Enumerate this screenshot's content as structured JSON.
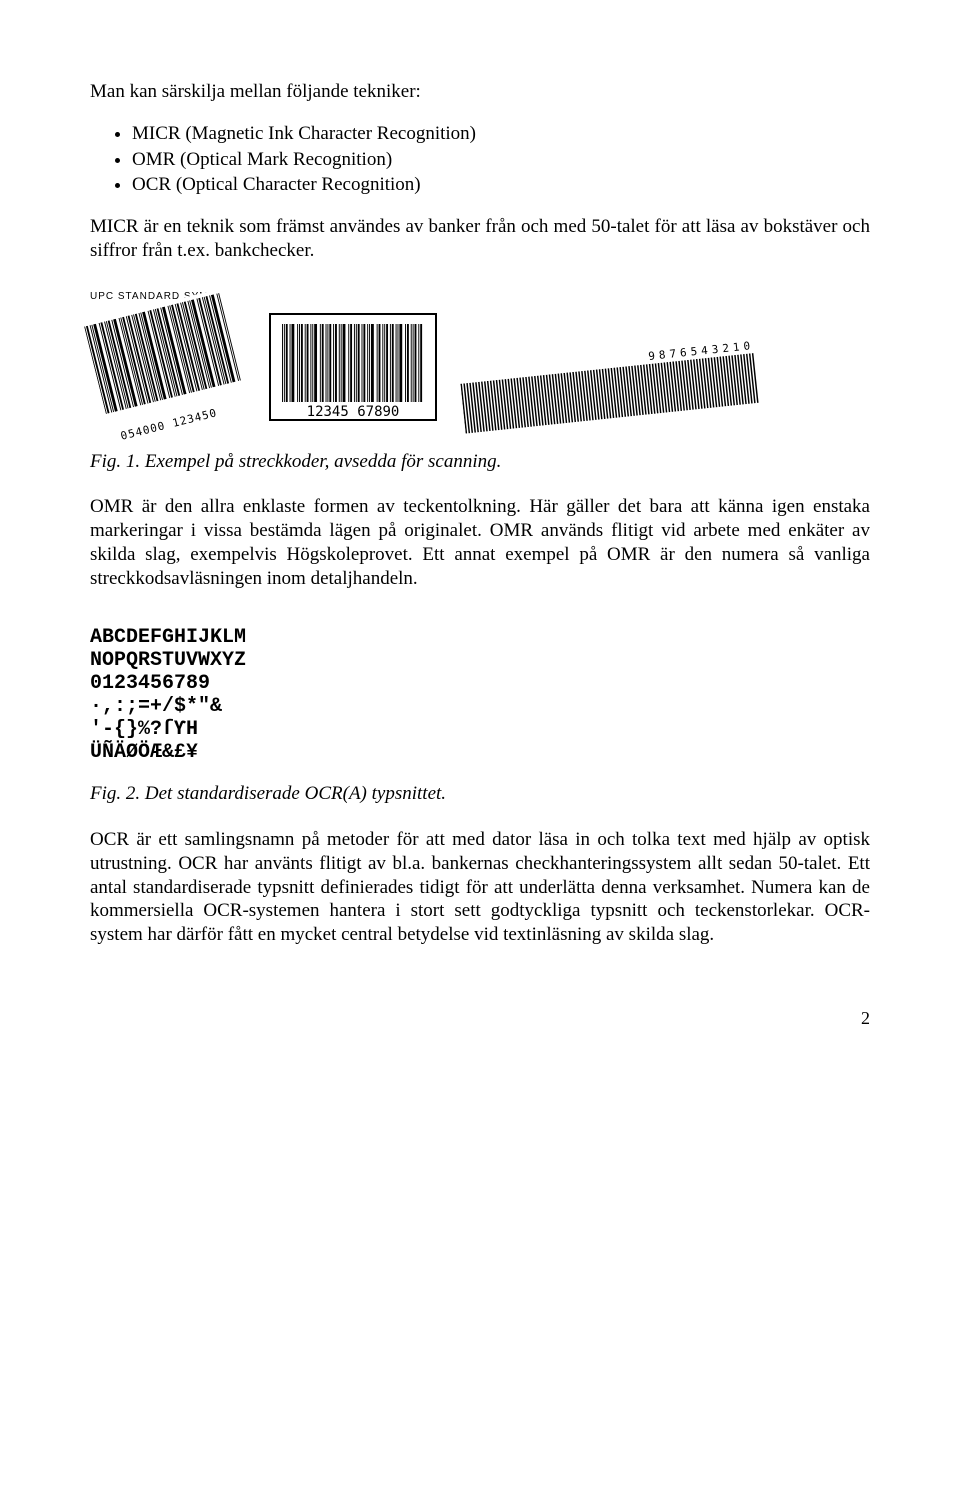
{
  "intro": "Man kan särskilja mellan följande tekniker:",
  "bullets": [
    "MICR (Magnetic Ink Character Recognition)",
    "OMR (Optical Mark Recognition)",
    "OCR (Optical Character Recognition)"
  ],
  "para_micr": "MICR är en teknik som främst användes av banker från och med 50-talet för att läsa av bokstäver och siffror från t.ex. bankchecker.",
  "fig1_caption": "Fig. 1. Exempel på streckkoder, avsedda för scanning.",
  "para_omr": "OMR är den allra enklaste formen av teckentolkning. Här gäller det bara att känna igen enstaka markeringar i vissa bestämda lägen på originalet. OMR används flitigt vid arbete med enkäter av skilda slag, exempelvis Högskoleprovet. Ett annat exempel på OMR är den numera så vanliga streckkodsavläsningen inom detaljhandeln.",
  "fig2_lines": [
    "ABCDEFGHIJKLM",
    "NOPQRSTUVWXYZ",
    " 0123456789",
    "·,:;=+/$*\"&",
    "'-{}%?ſƳH",
    "ÜÑÄØÖÆ&£¥"
  ],
  "fig2_caption": "Fig. 2. Det standardiserade OCR(A) typsnittet.",
  "para_ocr": "OCR är ett samlingsnamn på metoder för att med dator läsa in och tolka text med hjälp av optisk utrustning. OCR har använts flitigt av bl.a. bankernas checkhanteringssystem allt sedan 50-talet. Ett antal standardiserade typsnitt definierades tidigt för att underlätta denna verksamhet. Numera kan de kommersiella OCR-systemen hantera i stort sett godtyckliga typsnitt och teckenstorlekar. OCR-system har därför fått en mycket central betydelse vid textinläsning av skilda slag.",
  "page_number": "2",
  "fig1": {
    "upc_label_top": "UPC STANDARD SYMBOL",
    "digits_left": "054000 123450",
    "digits_mid": "12345 67890",
    "digits_right": "9876543210",
    "bar_color": "#000000",
    "bg": "#ffffff",
    "tilt_upc_deg": -14,
    "tilt_right_deg": -6,
    "bar_widths_upc": [
      1,
      2,
      1,
      1,
      3,
      1,
      2,
      1,
      1,
      2,
      1,
      3,
      1,
      1,
      2,
      1,
      2,
      1,
      1,
      2,
      1,
      1,
      3,
      1,
      2,
      1,
      1,
      2,
      1,
      3,
      1,
      1,
      2,
      1,
      2,
      1,
      1,
      2,
      1,
      1,
      3,
      1,
      2,
      1,
      1,
      2,
      1,
      3,
      1,
      1
    ],
    "bar_widths_mid": [
      1,
      1,
      2,
      1,
      3,
      1,
      1,
      2,
      1,
      2,
      1,
      1,
      3,
      1,
      2,
      1,
      1,
      2,
      1,
      2,
      1,
      1,
      3,
      1,
      2,
      1,
      1,
      2,
      1,
      2,
      1,
      1,
      3,
      1,
      2,
      1,
      1,
      2,
      1,
      2,
      1,
      1,
      3,
      1,
      2,
      1,
      1,
      2,
      1,
      2
    ],
    "bar_widths_right": [
      1,
      1,
      1,
      1,
      1,
      1,
      1,
      1,
      1,
      1,
      1,
      1,
      1,
      1,
      1,
      1,
      1,
      1,
      1,
      1,
      1,
      1,
      1,
      1,
      1,
      1,
      1,
      1,
      1,
      1,
      1,
      1,
      1,
      1,
      1,
      1,
      1,
      1,
      1,
      1,
      1,
      1,
      1,
      1,
      1,
      1,
      1,
      1,
      1,
      1,
      1,
      1,
      1,
      1,
      1,
      1,
      1,
      1,
      1,
      1,
      1,
      1,
      1,
      1,
      1,
      1,
      1,
      1,
      1,
      1,
      1,
      1,
      1,
      1,
      1,
      1,
      1,
      1,
      1,
      1,
      1,
      1,
      1,
      1,
      1,
      1,
      1,
      1,
      1,
      1,
      1,
      1,
      1,
      1,
      1,
      1,
      1,
      1,
      1,
      1
    ]
  }
}
